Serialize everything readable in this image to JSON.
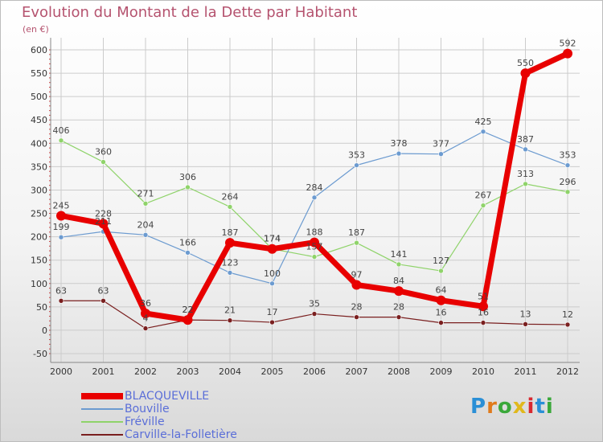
{
  "title": "Evolution du Montant de la Dette par Habitant",
  "subtitle": "(en €)",
  "brand": {
    "text": "Proxiti",
    "letter_colors": [
      "#2a8fd6",
      "#e07a1c",
      "#3aa83a",
      "#e0b81c",
      "#d8282f",
      "#2a8fd6",
      "#3aa83a"
    ]
  },
  "chart_data": {
    "type": "line",
    "title": "Evolution du Montant de la Dette par Habitant",
    "ylabel": "(en €)",
    "categories": [
      "2000",
      "2001",
      "2002",
      "2003",
      "2004",
      "2005",
      "2006",
      "2007",
      "2008",
      "2009",
      "2010",
      "2011",
      "2012"
    ],
    "ylim": [
      -50,
      600
    ],
    "yticks": [
      "-50",
      "0",
      "50",
      "100",
      "150",
      "200",
      "250",
      "300",
      "350",
      "400",
      "450",
      "500",
      "550",
      "600"
    ],
    "grid": true,
    "legend_position": "bottom-left",
    "series": [
      {
        "name": "Carville-la-Folletière",
        "color": "#7a1f1f",
        "width": 1.2,
        "values": [
          63,
          63,
          4,
          22,
          21,
          17,
          35,
          28,
          28,
          16,
          16,
          13,
          12
        ],
        "labels": [
          "63",
          "63",
          "4",
          "22",
          "21",
          "17",
          "35",
          "28",
          "28",
          "16",
          "16",
          "13",
          "12"
        ]
      },
      {
        "name": "Fréville",
        "color": "#8fd36a",
        "width": 1.2,
        "values": [
          406,
          360,
          271,
          306,
          264,
          174,
          157,
          187,
          141,
          127,
          267,
          313,
          296
        ],
        "labels": [
          "406",
          "360",
          "271",
          "306",
          "264",
          "174",
          "157",
          "187",
          "141",
          "127",
          "267",
          "313",
          "296"
        ]
      },
      {
        "name": "Bouville",
        "color": "#6c9bd0",
        "width": 1.2,
        "values": [
          199,
          211,
          204,
          166,
          123,
          100,
          284,
          353,
          378,
          377,
          425,
          387,
          353
        ],
        "labels": [
          "199",
          "211",
          "204",
          "166",
          "123",
          "100",
          "284",
          "353",
          "378",
          "377",
          "425",
          "387",
          "353"
        ]
      },
      {
        "name": "BLACQUEVILLE",
        "color": "#e80000",
        "width": 7,
        "values": [
          245,
          228,
          36,
          22,
          187,
          174,
          188,
          97,
          84,
          64,
          51,
          550,
          592
        ],
        "labels": [
          "245",
          "228",
          "36",
          "22",
          "187",
          "174",
          "188",
          "97",
          "84",
          "64",
          "51",
          "550",
          "592"
        ]
      }
    ],
    "legend_order": [
      "BLACQUEVILLE",
      "Bouville",
      "Fréville",
      "Carville-la-Folletière"
    ]
  }
}
